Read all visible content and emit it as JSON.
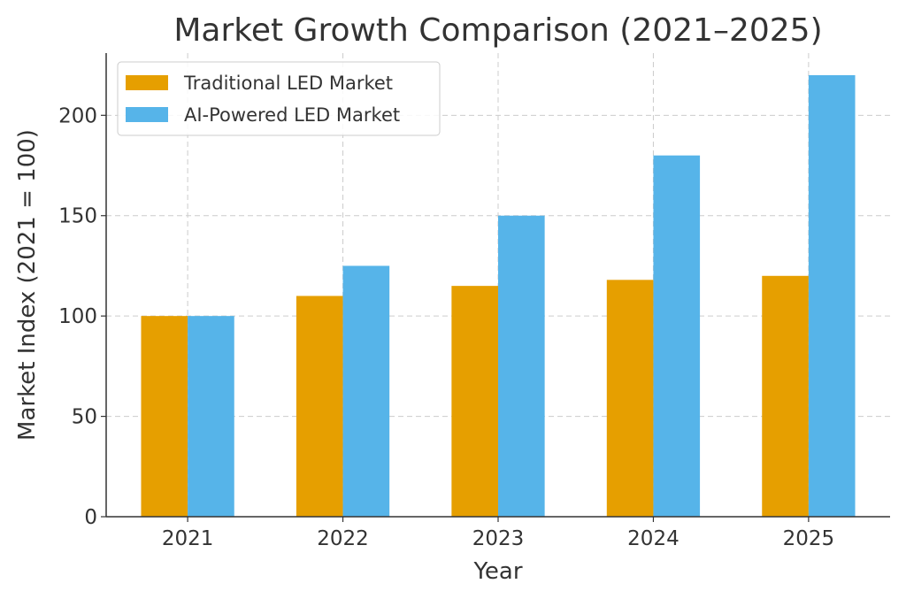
{
  "chart_data": {
    "type": "bar",
    "title": "Market Growth Comparison (2021–2025)",
    "xlabel": "Year",
    "ylabel": "Market Index (2021 = 100)",
    "categories": [
      "2021",
      "2022",
      "2023",
      "2024",
      "2025"
    ],
    "series": [
      {
        "name": "Traditional LED Market",
        "values": [
          100,
          110,
          115,
          118,
          120
        ],
        "color": "#E69F00"
      },
      {
        "name": "AI-Powered LED Market",
        "values": [
          100,
          125,
          150,
          180,
          220
        ],
        "color": "#56B4E9"
      }
    ],
    "ylim": [
      0,
      231
    ],
    "yticks": [
      0,
      50,
      100,
      150,
      200
    ],
    "grid": true,
    "legend": "top-left"
  }
}
